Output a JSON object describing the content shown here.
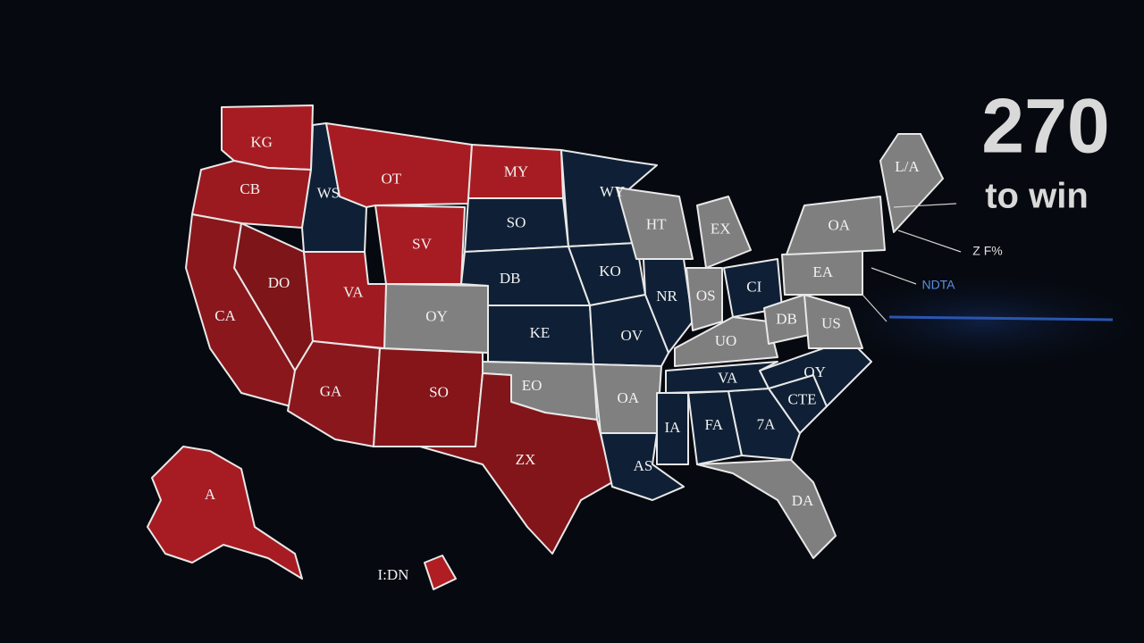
{
  "header": {
    "title": "270",
    "subtitle": "to win"
  },
  "states": [
    {
      "label": "KG",
      "color": "#a71c22"
    },
    {
      "label": "CB",
      "color": "#9b1a1f"
    },
    {
      "label": "WS",
      "color": "#0f2036"
    },
    {
      "label": "OT",
      "color": "#a71c22"
    },
    {
      "label": "SV",
      "color": "#a71c22"
    },
    {
      "label": "MY",
      "color": "#a71c22"
    },
    {
      "label": "SO",
      "color": "#0f2036"
    },
    {
      "label": "DB",
      "color": "#0f2036"
    },
    {
      "label": "KE",
      "color": "#0f2036"
    },
    {
      "label": "WY",
      "color": "#0f2036"
    },
    {
      "label": "KO",
      "color": "#0f2036"
    },
    {
      "label": "OV",
      "color": "#0f2036"
    },
    {
      "label": "OY",
      "color": "#808080"
    },
    {
      "label": "DO",
      "color": "#7e1519"
    },
    {
      "label": "CA",
      "color": "#8a171c"
    },
    {
      "label": "VA",
      "color": "#a01b21"
    },
    {
      "label": "GA",
      "color": "#8a171c"
    },
    {
      "label": "SO",
      "color": "#851519"
    },
    {
      "label": "EO",
      "color": "#808080"
    },
    {
      "label": "ZX",
      "color": "#821519"
    },
    {
      "label": "OA",
      "color": "#808080"
    },
    {
      "label": "AS",
      "color": "#0f2036"
    },
    {
      "label": "IA",
      "color": "#0f2036"
    },
    {
      "label": "FA",
      "color": "#0f2036"
    },
    {
      "label": "7A",
      "color": "#0f2036"
    },
    {
      "label": "DA",
      "color": "#7f7f7f"
    },
    {
      "label": "CTE",
      "color": "#0f2036"
    },
    {
      "label": "OY",
      "color": "#0f2036"
    },
    {
      "label": "VA",
      "color": "#0f2036"
    },
    {
      "label": "UO",
      "color": "#7f7f7f"
    },
    {
      "label": "NR",
      "color": "#0f2036"
    },
    {
      "label": "HT",
      "color": "#7f7f7f"
    },
    {
      "label": "EX",
      "color": "#7f7f7f"
    },
    {
      "label": "OS",
      "color": "#7f7f7f"
    },
    {
      "label": "CI",
      "color": "#0f2036"
    },
    {
      "label": "DB",
      "color": "#7f7f7f"
    },
    {
      "label": "US",
      "color": "#7f7f7f"
    },
    {
      "label": "EA",
      "color": "#7f7f7f"
    },
    {
      "label": "OA",
      "color": "#7f7f7f"
    },
    {
      "label": "L/A",
      "color": "#7f7f7f"
    },
    {
      "label": "A",
      "color": "#a71c22"
    },
    {
      "label": "I:DN",
      "color": "#b01d22"
    }
  ],
  "annotations": [
    {
      "text": "Z F%",
      "color": "#e0e0e0"
    },
    {
      "text": "NDTA",
      "color": "#5a8fe0"
    }
  ]
}
